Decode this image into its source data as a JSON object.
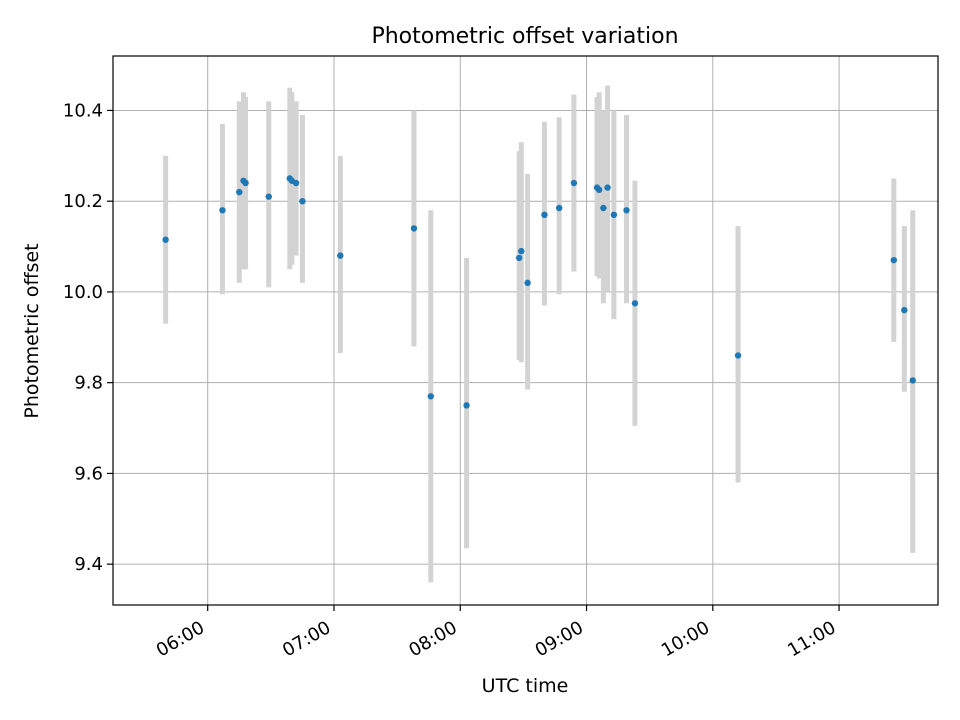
{
  "chart_data": {
    "type": "scatter",
    "title": "Photometric offset variation",
    "xlabel": "UTC time",
    "ylabel": "Photometric offset",
    "x_range": [
      "05:15",
      "11:47"
    ],
    "ylim": [
      9.31,
      10.52
    ],
    "x_ticks": [
      "06:00",
      "07:00",
      "08:00",
      "09:00",
      "10:00",
      "11:00"
    ],
    "y_ticks": [
      9.4,
      9.6,
      9.8,
      10.0,
      10.2,
      10.4
    ],
    "grid": true,
    "legend": "none",
    "colors": {
      "point": "#1f77b4",
      "errorbar": "#d3d3d3",
      "grid": "#b0b0b0"
    },
    "points": [
      {
        "x": "05:40",
        "y": 10.115,
        "ymin": 9.93,
        "ymax": 10.3
      },
      {
        "x": "06:07",
        "y": 10.18,
        "ymin": 9.995,
        "ymax": 10.37
      },
      {
        "x": "06:15",
        "y": 10.22,
        "ymin": 10.02,
        "ymax": 10.42
      },
      {
        "x": "06:17",
        "y": 10.245,
        "ymin": 10.05,
        "ymax": 10.44
      },
      {
        "x": "06:18",
        "y": 10.24,
        "ymin": 10.05,
        "ymax": 10.43
      },
      {
        "x": "06:29",
        "y": 10.21,
        "ymin": 10.01,
        "ymax": 10.42
      },
      {
        "x": "06:39",
        "y": 10.25,
        "ymin": 10.05,
        "ymax": 10.45
      },
      {
        "x": "06:40",
        "y": 10.245,
        "ymin": 10.06,
        "ymax": 10.44
      },
      {
        "x": "06:42",
        "y": 10.24,
        "ymin": 10.08,
        "ymax": 10.42
      },
      {
        "x": "06:45",
        "y": 10.2,
        "ymin": 10.02,
        "ymax": 10.39
      },
      {
        "x": "07:03",
        "y": 10.08,
        "ymin": 9.865,
        "ymax": 10.3
      },
      {
        "x": "07:38",
        "y": 10.14,
        "ymin": 9.88,
        "ymax": 10.4
      },
      {
        "x": "07:46",
        "y": 9.77,
        "ymin": 9.36,
        "ymax": 10.18
      },
      {
        "x": "08:03",
        "y": 9.75,
        "ymin": 9.435,
        "ymax": 10.075
      },
      {
        "x": "08:28",
        "y": 10.075,
        "ymin": 9.85,
        "ymax": 10.31
      },
      {
        "x": "08:29",
        "y": 10.09,
        "ymin": 9.845,
        "ymax": 10.33
      },
      {
        "x": "08:32",
        "y": 10.02,
        "ymin": 9.785,
        "ymax": 10.26
      },
      {
        "x": "08:40",
        "y": 10.17,
        "ymin": 9.97,
        "ymax": 10.375
      },
      {
        "x": "08:47",
        "y": 10.185,
        "ymin": 9.995,
        "ymax": 10.385
      },
      {
        "x": "08:54",
        "y": 10.24,
        "ymin": 10.045,
        "ymax": 10.435
      },
      {
        "x": "09:05",
        "y": 10.23,
        "ymin": 10.035,
        "ymax": 10.43
      },
      {
        "x": "09:06",
        "y": 10.225,
        "ymin": 10.03,
        "ymax": 10.44
      },
      {
        "x": "09:08",
        "y": 10.185,
        "ymin": 9.975,
        "ymax": 10.4
      },
      {
        "x": "09:10",
        "y": 10.23,
        "ymin": 10.0,
        "ymax": 10.455
      },
      {
        "x": "09:13",
        "y": 10.17,
        "ymin": 9.94,
        "ymax": 10.4
      },
      {
        "x": "09:19",
        "y": 10.18,
        "ymin": 9.975,
        "ymax": 10.39
      },
      {
        "x": "09:23",
        "y": 9.975,
        "ymin": 9.705,
        "ymax": 10.245
      },
      {
        "x": "10:12",
        "y": 9.86,
        "ymin": 9.58,
        "ymax": 10.145
      },
      {
        "x": "11:26",
        "y": 10.07,
        "ymin": 9.89,
        "ymax": 10.25
      },
      {
        "x": "11:31",
        "y": 9.96,
        "ymin": 9.78,
        "ymax": 10.145
      },
      {
        "x": "11:35",
        "y": 9.805,
        "ymin": 9.425,
        "ymax": 10.18
      }
    ]
  }
}
